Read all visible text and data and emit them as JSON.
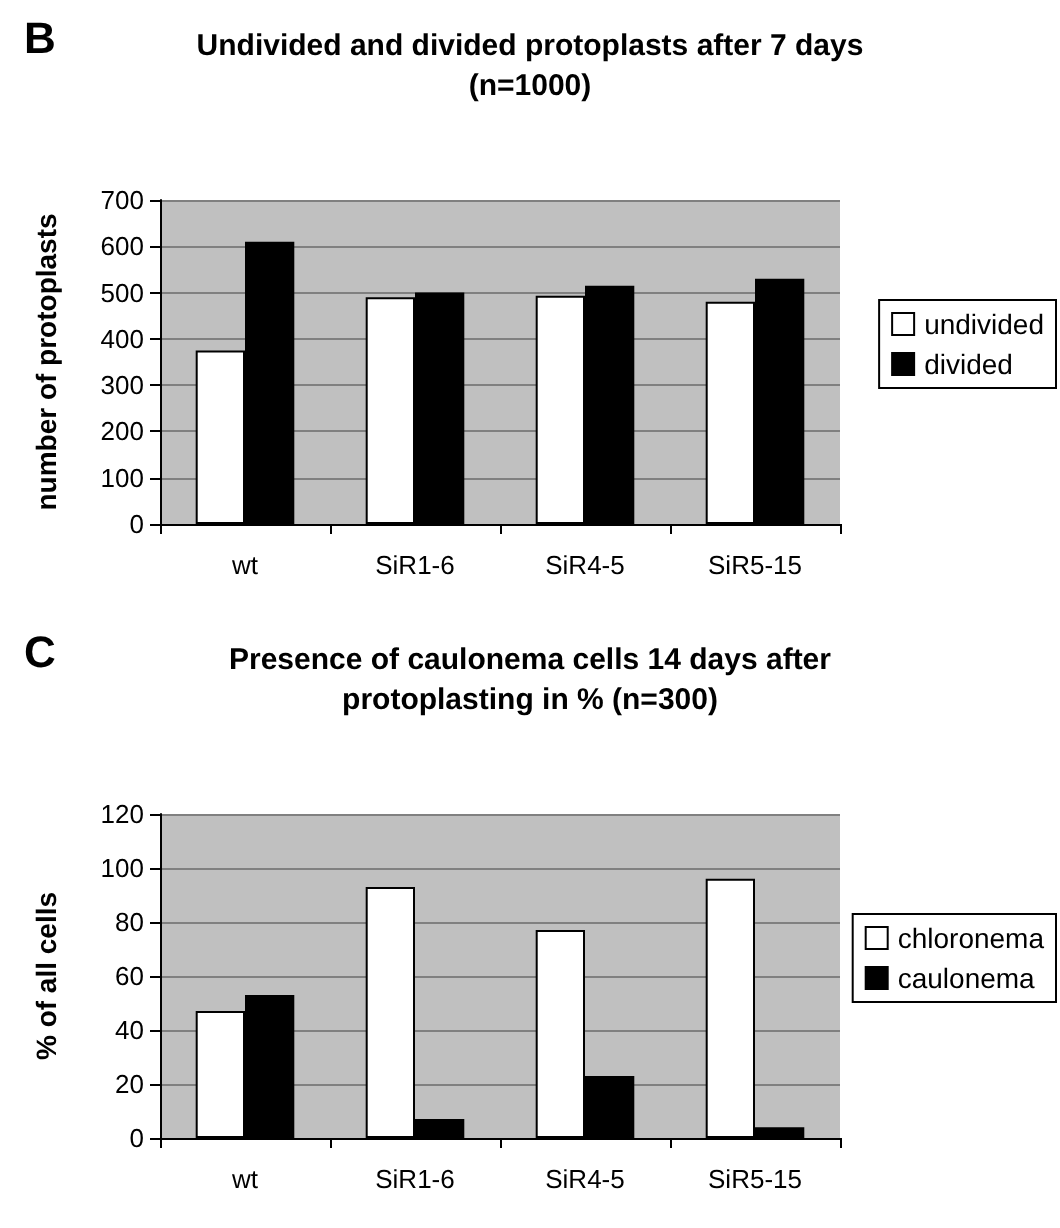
{
  "chart_data": [
    {
      "type": "bar",
      "title": "Undivided and divided protoplasts after 7 days\n(n=1000)",
      "annotations": [
        "B"
      ],
      "ylabel": "number of protoplasts",
      "categories": [
        "wt",
        "SiR1-6",
        "SiR4-5",
        "SiR5-15"
      ],
      "series": [
        {
          "name": "undivided",
          "color": "#ffffff",
          "values": [
            375,
            490,
            493,
            480
          ]
        },
        {
          "name": "divided",
          "color": "#000000",
          "values": [
            610,
            500,
            515,
            530
          ]
        }
      ],
      "ylim": [
        0,
        700
      ],
      "yticks": [
        0,
        100,
        200,
        300,
        400,
        500,
        600,
        700
      ],
      "grid": "y",
      "legend": "right"
    },
    {
      "type": "bar",
      "title": "Presence of caulonema cells 14 days after\nprotoplasting in % (n=300)",
      "annotations": [
        "C"
      ],
      "ylabel": "% of all cells",
      "categories": [
        "wt",
        "SiR1-6",
        "SiR4-5",
        "SiR5-15"
      ],
      "series": [
        {
          "name": "chloronema",
          "color": "#ffffff",
          "values": [
            47,
            93,
            77,
            96
          ]
        },
        {
          "name": "caulonema",
          "color": "#000000",
          "values": [
            53,
            7,
            23,
            4
          ]
        }
      ],
      "ylim": [
        0,
        120
      ],
      "yticks": [
        0,
        20,
        40,
        60,
        80,
        100,
        120
      ],
      "grid": "y",
      "legend": "right"
    }
  ]
}
